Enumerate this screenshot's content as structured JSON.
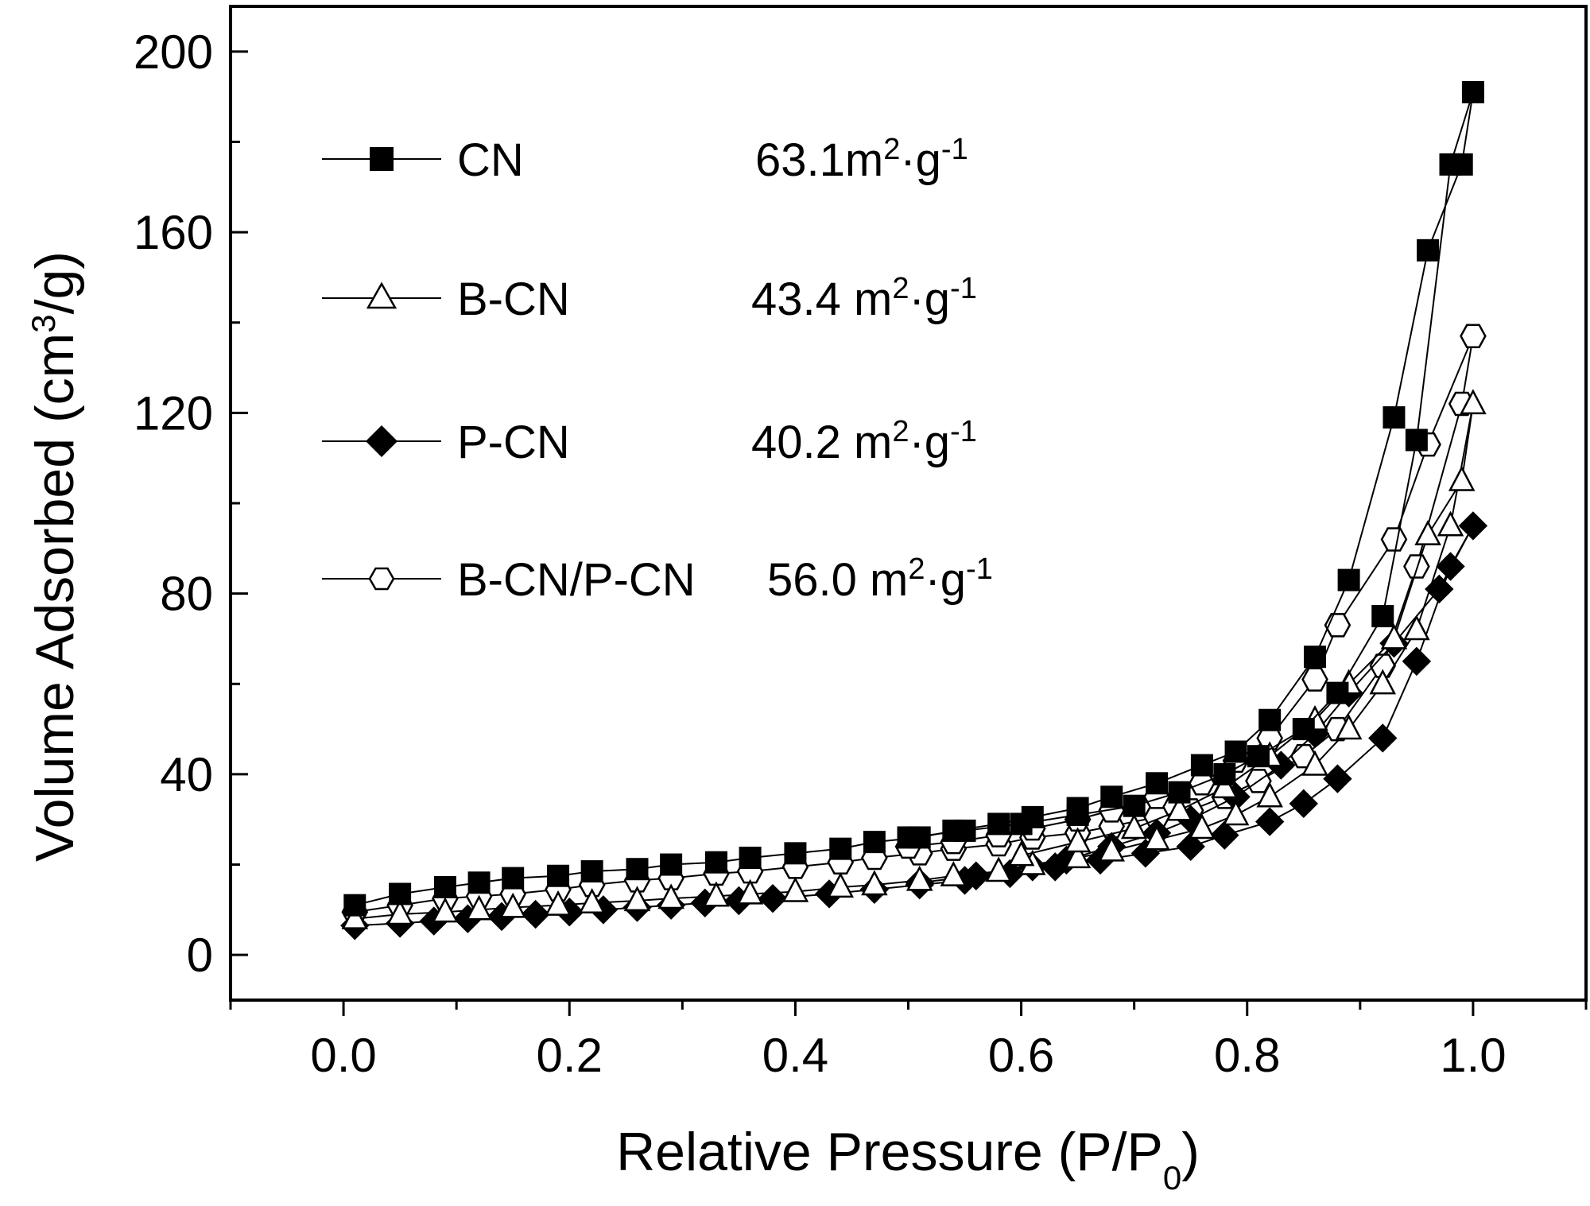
{
  "chart_data": {
    "type": "line",
    "title": "",
    "xlabel": "Relative Pressure (P/P0)",
    "xlabel_parts": {
      "main": "Relative Pressure (P/P",
      "sub": "0",
      "close": ")"
    },
    "ylabel": "Volume Adsorbed (cm3/g)",
    "ylabel_parts": {
      "main": "Volume Adsorbed (cm",
      "sup": "3",
      "close": "/g)"
    },
    "xlim": [
      -0.1,
      1.1
    ],
    "ylim": [
      -10,
      210
    ],
    "xticks": [
      "0.0",
      "0.2",
      "0.4",
      "0.6",
      "0.8",
      "1.0"
    ],
    "xtick_values": [
      0.0,
      0.2,
      0.4,
      0.6,
      0.8,
      1.0
    ],
    "yticks": [
      "0",
      "40",
      "80",
      "120",
      "160",
      "200"
    ],
    "ytick_values": [
      0,
      40,
      80,
      120,
      160,
      200
    ],
    "legend_position": "top-left",
    "series": [
      {
        "name": "CN",
        "area_text": {
          "value": "63.1m",
          "sup": "2",
          "mid": "·g",
          "sup2": "-1"
        },
        "marker": "square-filled",
        "adsorption": {
          "x": [
            0.01,
            0.05,
            0.09,
            0.12,
            0.15,
            0.19,
            0.22,
            0.26,
            0.29,
            0.33,
            0.36,
            0.4,
            0.44,
            0.47,
            0.51,
            0.54,
            0.58,
            0.61,
            0.65,
            0.68,
            0.72,
            0.76,
            0.79,
            0.82,
            0.86,
            0.89,
            0.93,
            0.96,
            0.99,
            1.0
          ],
          "y": [
            11,
            13.5,
            15,
            16,
            17,
            17.5,
            18.5,
            19,
            20,
            20.5,
            21.5,
            22.5,
            23.5,
            25,
            26,
            27.5,
            29,
            30.5,
            32.5,
            35,
            38,
            42,
            45,
            52,
            66,
            83,
            119,
            156,
            175,
            191
          ]
        },
        "desorption": {
          "x": [
            0.98,
            0.95,
            0.92,
            0.88,
            0.85,
            0.81,
            0.78,
            0.74,
            0.7,
            0.65,
            0.6,
            0.55,
            0.5
          ],
          "y": [
            175,
            114,
            75,
            58,
            50,
            44,
            40,
            36,
            33,
            31,
            29,
            27.5,
            26
          ]
        }
      },
      {
        "name": "B-CN",
        "area_text": {
          "value": "43.4 m",
          "sup": "2",
          "mid": "·g",
          "sup2": "-1"
        },
        "marker": "triangle-open",
        "adsorption": {
          "x": [
            0.01,
            0.05,
            0.09,
            0.12,
            0.15,
            0.19,
            0.22,
            0.26,
            0.29,
            0.33,
            0.36,
            0.4,
            0.44,
            0.47,
            0.51,
            0.54,
            0.58,
            0.61,
            0.65,
            0.68,
            0.72,
            0.76,
            0.79,
            0.82,
            0.86,
            0.89,
            0.92,
            0.95,
            0.98,
            1.0
          ],
          "y": [
            8,
            9,
            9.5,
            10,
            10.5,
            11,
            11.5,
            12,
            12.5,
            13,
            13.5,
            14,
            15,
            15.5,
            16.5,
            17.5,
            18.5,
            20,
            21.5,
            23,
            25.5,
            28,
            31,
            35,
            42,
            50,
            60,
            72,
            95,
            122
          ]
        },
        "desorption": {
          "x": [
            0.99,
            0.96,
            0.93,
            0.89,
            0.86,
            0.82,
            0.78,
            0.74,
            0.7,
            0.65,
            0.6
          ],
          "y": [
            105,
            93,
            70,
            60,
            52,
            44,
            37,
            32,
            28,
            25,
            22
          ]
        }
      },
      {
        "name": "P-CN",
        "area_text": {
          "value": "40.2 m",
          "sup": "2",
          "mid": "·g",
          "sup2": "-1"
        },
        "marker": "diamond-filled",
        "adsorption": {
          "x": [
            0.01,
            0.05,
            0.08,
            0.11,
            0.14,
            0.17,
            0.2,
            0.23,
            0.26,
            0.29,
            0.32,
            0.35,
            0.38,
            0.43,
            0.47,
            0.51,
            0.55,
            0.59,
            0.63,
            0.67,
            0.71,
            0.75,
            0.78,
            0.82,
            0.85,
            0.88,
            0.92,
            0.95,
            0.98,
            1.0
          ],
          "y": [
            6.5,
            7,
            7.5,
            8,
            8.5,
            9,
            9.5,
            10,
            10.5,
            11,
            11.5,
            12,
            12.5,
            13.5,
            14.5,
            15.5,
            16.5,
            18,
            19.5,
            21,
            22.5,
            24,
            26.5,
            29.5,
            33.5,
            39,
            48,
            65,
            86,
            95
          ]
        },
        "desorption": {
          "x": [
            0.97,
            0.93,
            0.89,
            0.86,
            0.83,
            0.79,
            0.75,
            0.72,
            0.68,
            0.64,
            0.61,
            0.56,
            0.51
          ],
          "y": [
            81,
            69,
            58,
            49,
            42,
            35,
            30,
            27,
            24,
            21,
            19.5,
            17.5,
            16
          ]
        }
      },
      {
        "name": "B-CN/P-CN",
        "area_text": {
          "value": "56.0 m",
          "sup": "2",
          "mid": "·g",
          "sup2": "-1"
        },
        "marker": "hexagon-open",
        "adsorption": {
          "x": [
            0.01,
            0.05,
            0.09,
            0.12,
            0.15,
            0.19,
            0.22,
            0.26,
            0.29,
            0.33,
            0.36,
            0.4,
            0.44,
            0.47,
            0.51,
            0.54,
            0.58,
            0.61,
            0.65,
            0.68,
            0.72,
            0.75,
            0.78,
            0.81,
            0.85,
            0.88,
            0.92,
            0.95,
            0.99,
            1.0
          ],
          "y": [
            9.5,
            11,
            12.5,
            13,
            13.5,
            14.5,
            15.5,
            16.5,
            17,
            18,
            18.5,
            19.5,
            20.5,
            21.5,
            22.5,
            23.5,
            24.5,
            26,
            27,
            28.5,
            30.5,
            32,
            35,
            38.5,
            44,
            50,
            64,
            86,
            122,
            137
          ]
        },
        "desorption": {
          "x": [
            0.96,
            0.93,
            0.88,
            0.86,
            0.82,
            0.79,
            0.76,
            0.72,
            0.68,
            0.65,
            0.61,
            0.58,
            0.54,
            0.5
          ],
          "y": [
            113,
            92,
            73,
            61,
            48,
            43,
            38,
            35,
            32,
            30,
            28,
            26.5,
            25,
            24
          ]
        }
      }
    ]
  }
}
